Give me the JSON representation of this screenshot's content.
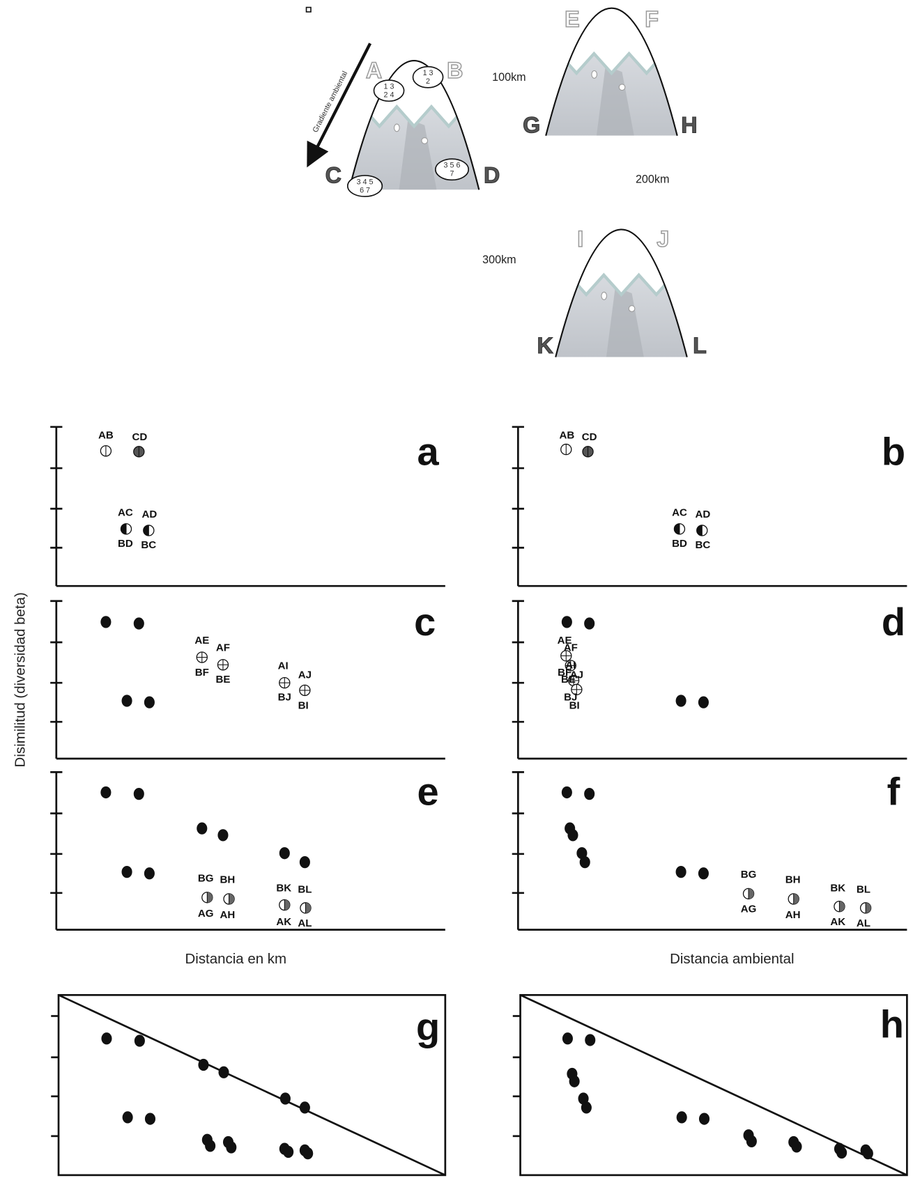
{
  "mountains": [
    {
      "top_left": "A",
      "top_right": "B",
      "bottom_left": "C",
      "bottom_right": "D"
    },
    {
      "top_left": "E",
      "top_right": "F",
      "bottom_left": "G",
      "bottom_right": "H"
    },
    {
      "top_left": "I",
      "top_right": "J",
      "bottom_left": "K",
      "bottom_right": "L"
    }
  ],
  "ellipses": [
    [
      "1 3",
      "2 4"
    ],
    [
      "1 3",
      "2"
    ],
    [
      "3 4 5",
      "6 7"
    ],
    [
      "3 5 6",
      "7"
    ]
  ],
  "gradient_label": "Gradiente ambiental",
  "distances": [
    "100km",
    "200km",
    "300km"
  ],
  "y_axis_label": "Disimilitud (diversidad beta)",
  "x_axis_labels": [
    "Distancia en km",
    "Distancia ambiental"
  ],
  "panels": [
    {
      "letter": "a",
      "point_labels": [
        "AB",
        "CD",
        "AC",
        "AD",
        "BD",
        "BC"
      ]
    },
    {
      "letter": "b",
      "point_labels": [
        "AB",
        "CD",
        "AC",
        "AD",
        "BD",
        "BC"
      ]
    },
    {
      "letter": "c",
      "point_labels": [
        "AE",
        "AF",
        "BF",
        "BE",
        "AI",
        "AJ",
        "BJ",
        "BI"
      ]
    },
    {
      "letter": "d",
      "point_labels": [
        "AE",
        "AF",
        "AI",
        "AJ",
        "BF",
        "BE",
        "BJ",
        "BI"
      ]
    },
    {
      "letter": "e",
      "point_labels": [
        "BG",
        "BH",
        "AG",
        "AH",
        "BK",
        "BL",
        "AK",
        "AL"
      ]
    },
    {
      "letter": "f",
      "point_labels": [
        "BG",
        "BH",
        "AG",
        "AH",
        "BK",
        "BL",
        "AK",
        "AL"
      ]
    },
    {
      "letter": "g"
    },
    {
      "letter": "h"
    }
  ]
}
